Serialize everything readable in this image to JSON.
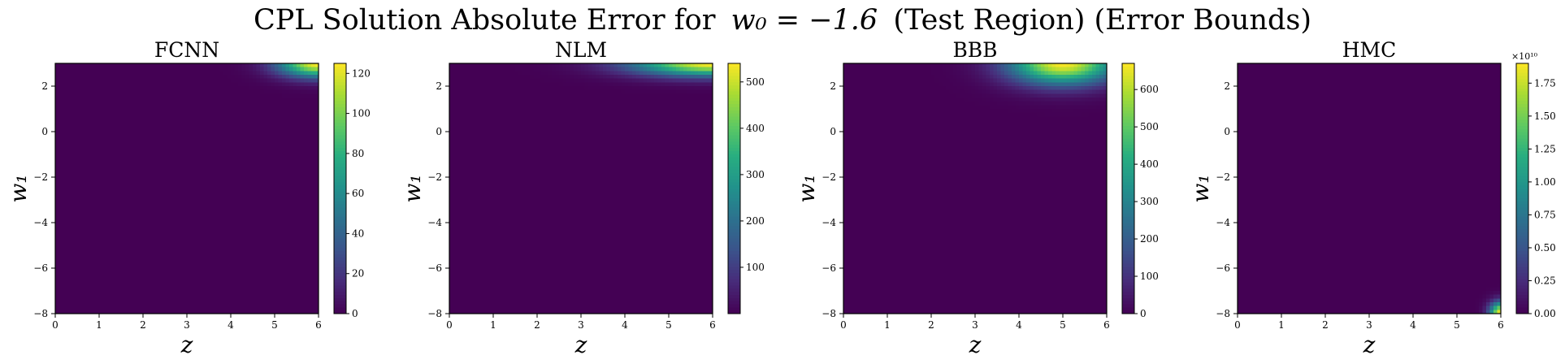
{
  "figure": {
    "title_prefix": "CPL Solution Absolute Error for",
    "title_math": "w₀ = −1.6",
    "title_suffix": "(Test Region) (Error Bounds)"
  },
  "chart_data": [
    {
      "type": "heatmap",
      "title": "FCNN",
      "xlabel": "z",
      "ylabel": "w₁",
      "xlim": [
        0,
        6
      ],
      "ylim": [
        -8,
        3
      ],
      "x_ticks": [
        "0",
        "1",
        "2",
        "3",
        "4",
        "5",
        "6"
      ],
      "y_ticks": [
        "−8",
        "−6",
        "−4",
        "−2",
        "0",
        "2"
      ],
      "colorscale": "viridis",
      "colorbar": {
        "min": 0,
        "max": 125,
        "ticks": [
          "0",
          "20",
          "40",
          "60",
          "80",
          "100",
          "120"
        ],
        "exponent": ""
      },
      "hotspots": [
        {
          "z": 6.0,
          "w1": 3.0,
          "value": 125,
          "z_spread": 0.9,
          "w1_spread": 0.6
        }
      ]
    },
    {
      "type": "heatmap",
      "title": "NLM",
      "xlabel": "z",
      "ylabel": "w₁",
      "xlim": [
        0,
        6
      ],
      "ylim": [
        -8,
        3
      ],
      "x_ticks": [
        "0",
        "1",
        "2",
        "3",
        "4",
        "5",
        "6"
      ],
      "y_ticks": [
        "−8",
        "−6",
        "−4",
        "−2",
        "0",
        "2"
      ],
      "colorscale": "viridis",
      "colorbar": {
        "min": 0,
        "max": 540,
        "ticks": [
          "100",
          "200",
          "300",
          "400",
          "500"
        ],
        "exponent": ""
      },
      "hotspots": [
        {
          "z": 6.0,
          "w1": 3.0,
          "value": 540,
          "z_spread": 1.8,
          "w1_spread": 0.55
        }
      ]
    },
    {
      "type": "heatmap",
      "title": "BBB",
      "xlabel": "z",
      "ylabel": "w₁",
      "xlim": [
        0,
        6
      ],
      "ylim": [
        -8,
        3
      ],
      "x_ticks": [
        "0",
        "1",
        "2",
        "3",
        "4",
        "5",
        "6"
      ],
      "y_ticks": [
        "−8",
        "−6",
        "−4",
        "−2",
        "0",
        "2"
      ],
      "colorscale": "viridis",
      "colorbar": {
        "min": 0,
        "max": 670,
        "ticks": [
          "0",
          "100",
          "200",
          "300",
          "400",
          "500",
          "600"
        ],
        "exponent": ""
      },
      "hotspots": [
        {
          "z": 5.0,
          "w1": 3.0,
          "value": 670,
          "z_spread": 1.2,
          "w1_spread": 0.9
        }
      ]
    },
    {
      "type": "heatmap",
      "title": "HMC",
      "xlabel": "z",
      "ylabel": "w₁",
      "xlim": [
        0,
        6
      ],
      "ylim": [
        -8,
        3
      ],
      "x_ticks": [
        "0",
        "1",
        "2",
        "3",
        "4",
        "5",
        "6"
      ],
      "y_ticks": [
        "−8",
        "−6",
        "−4",
        "−2",
        "0",
        "2"
      ],
      "colorscale": "viridis",
      "colorbar": {
        "min": 0,
        "max": 1.9,
        "ticks": [
          "0.00",
          "0.25",
          "0.50",
          "0.75",
          "1.00",
          "1.25",
          "1.50",
          "1.75"
        ],
        "exponent": "×10¹⁰"
      },
      "hotspots": [
        {
          "z": 6.0,
          "w1": -8.0,
          "value": 1.9,
          "z_spread": 0.25,
          "w1_spread": 0.5
        }
      ]
    }
  ]
}
